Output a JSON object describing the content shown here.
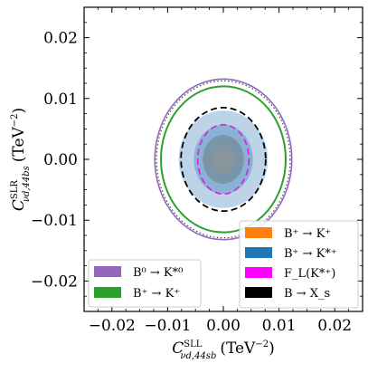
{
  "chart_data": {
    "type": "contour",
    "title": "",
    "xlabel": {
      "symbol": "C",
      "sup": "SLL",
      "sub": "νd,44sb",
      "unit": "(TeV",
      "unit_exp": "−2",
      "unit_close": ")"
    },
    "ylabel": {
      "symbol": "C",
      "sup": "SLR",
      "sub": "νd,44bs",
      "unit": "(TeV",
      "unit_exp": "−2",
      "unit_close": ")"
    },
    "xlim": [
      -0.025,
      0.025
    ],
    "ylim": [
      -0.025,
      0.025
    ],
    "xticks": [
      -0.02,
      -0.01,
      0.0,
      0.01,
      0.02
    ],
    "xtick_labels": [
      "−0.02",
      "−0.01",
      "0.00",
      "0.01",
      "0.02"
    ],
    "yticks": [
      -0.02,
      -0.01,
      0.0,
      0.01,
      0.02
    ],
    "ytick_labels": [
      "−0.02",
      "−0.01",
      "0.00",
      "0.01",
      "0.02"
    ],
    "grid": false,
    "contours": [
      {
        "kind": "filled",
        "cx": 0.0,
        "cy": 0.0,
        "rx": 0.008,
        "ry": 0.008,
        "color": "#bcd3e8"
      },
      {
        "kind": "filled",
        "cx": 0.0,
        "cy": 0.0,
        "rx": 0.0053,
        "ry": 0.0057,
        "color": "#8ab2d4"
      },
      {
        "kind": "filled",
        "cx": 0.0,
        "cy": 0.0,
        "rx": 0.0037,
        "ry": 0.004,
        "color": "#7a95a8"
      },
      {
        "kind": "filled",
        "cx": 0.0,
        "cy": 0.0,
        "rx": 0.0021,
        "ry": 0.0023,
        "color": "#8a949c"
      },
      {
        "kind": "line",
        "cx": 0.0,
        "cy": 0.0,
        "rx": 0.0123,
        "ry": 0.0132,
        "color": "#9467bd",
        "dash": "solid",
        "width": 1.6
      },
      {
        "kind": "line",
        "cx": 0.0,
        "cy": 0.0,
        "rx": 0.012,
        "ry": 0.0129,
        "color": "#444444",
        "dash": "dotted",
        "width": 1.2
      },
      {
        "kind": "line",
        "cx": 0.0,
        "cy": 0.0,
        "rx": 0.0112,
        "ry": 0.012,
        "color": "#2ca02c",
        "dash": "solid",
        "width": 2.0
      },
      {
        "kind": "line",
        "cx": 0.0,
        "cy": 0.0,
        "rx": 0.0076,
        "ry": 0.0085,
        "color": "#000000",
        "dash": "dashed",
        "width": 1.8
      },
      {
        "kind": "line",
        "cx": 0.0,
        "cy": 0.0,
        "rx": 0.0046,
        "ry": 0.0057,
        "color": "#e31ae3",
        "dash": "dashed",
        "width": 1.6
      }
    ],
    "legend_right": {
      "placement": "lower-right",
      "entries": [
        {
          "label": "B⁺ → K⁺",
          "color": "#ff7f0e"
        },
        {
          "label": "B⁺ → K*⁺",
          "color": "#1f77b4"
        },
        {
          "label": "F_L(K*⁺)",
          "color": "#ff00ff"
        },
        {
          "label": "B → X_s",
          "color": "#000000"
        }
      ]
    },
    "legend_left": {
      "placement": "lower-left",
      "entries": [
        {
          "label": "B⁰ → K*⁰",
          "color": "#9467bd"
        },
        {
          "label": "B⁺ → K⁺",
          "color": "#2ca02c"
        }
      ]
    }
  }
}
